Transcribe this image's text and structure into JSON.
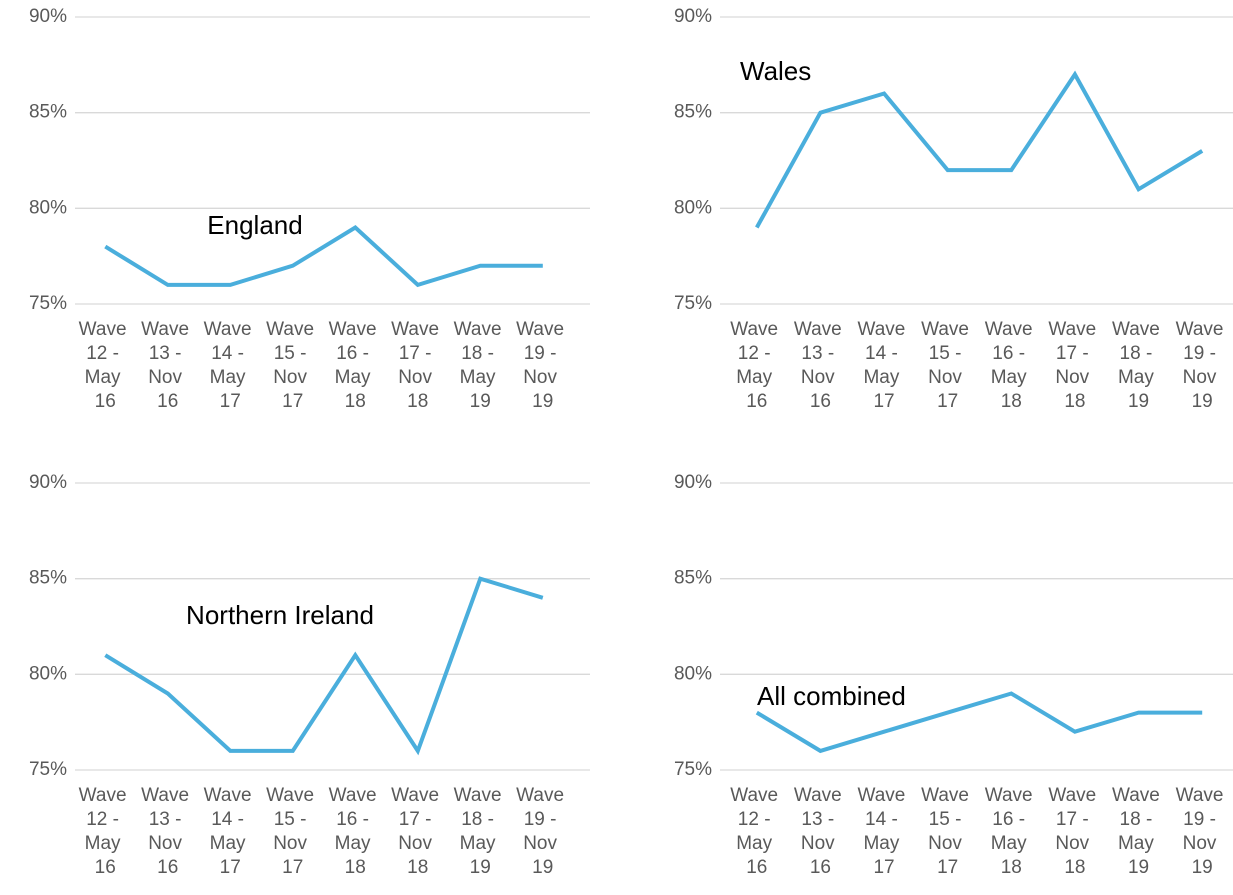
{
  "chart_data": [
    {
      "type": "line",
      "title": "England",
      "categories": [
        "Wave 12 - May 16",
        "Wave 13 - Nov 16",
        "Wave 14 - May 17",
        "Wave 15 - Nov 17",
        "Wave 16 - May 18",
        "Wave 17 - Nov 18",
        "Wave 18 - May 19",
        "Wave 19 - Nov 19"
      ],
      "values": [
        78,
        76,
        76,
        77,
        79,
        76,
        77,
        77
      ],
      "color": "#4aaedc",
      "ylim": [
        75,
        90
      ],
      "yticks": [
        {
          "value": 75,
          "label": "75%"
        },
        {
          "value": 80,
          "label": "80%"
        },
        {
          "value": 85,
          "label": "85%"
        },
        {
          "value": 90,
          "label": "90%"
        }
      ],
      "grid": true
    },
    {
      "type": "line",
      "title": "Wales",
      "categories": [
        "Wave 12 - May 16",
        "Wave 13 - Nov 16",
        "Wave 14 - May 17",
        "Wave 15 - Nov 17",
        "Wave 16 - May 18",
        "Wave 17 - Nov 18",
        "Wave 18 - May 19",
        "Wave 19 - Nov 19"
      ],
      "values": [
        79,
        85,
        86,
        82,
        82,
        87,
        81,
        83
      ],
      "color": "#4aaedc",
      "ylim": [
        75,
        90
      ],
      "yticks": [
        {
          "value": 75,
          "label": "75%"
        },
        {
          "value": 80,
          "label": "80%"
        },
        {
          "value": 85,
          "label": "85%"
        },
        {
          "value": 90,
          "label": "90%"
        }
      ],
      "grid": true
    },
    {
      "type": "line",
      "title": "Northern Ireland",
      "categories": [
        "Wave 12 - May 16",
        "Wave 13 - Nov 16",
        "Wave 14 - May 17",
        "Wave 15 - Nov 17",
        "Wave 16 - May 18",
        "Wave 17 - Nov 18",
        "Wave 18 - May 19",
        "Wave 19 - Nov 19"
      ],
      "values": [
        81,
        79,
        76,
        76,
        81,
        76,
        85,
        84
      ],
      "color": "#4aaedc",
      "ylim": [
        75,
        90
      ],
      "yticks": [
        {
          "value": 75,
          "label": "75%"
        },
        {
          "value": 80,
          "label": "80%"
        },
        {
          "value": 85,
          "label": "85%"
        },
        {
          "value": 90,
          "label": "90%"
        }
      ],
      "grid": true
    },
    {
      "type": "line",
      "title": "All combined",
      "categories": [
        "Wave 12 - May 16",
        "Wave 13 - Nov 16",
        "Wave 14 - May 17",
        "Wave 15 - Nov 17",
        "Wave 16 - May 18",
        "Wave 17 - Nov 18",
        "Wave 18 - May 19",
        "Wave 19 - Nov 19"
      ],
      "values": [
        78,
        76,
        77,
        78,
        79,
        77,
        78,
        78
      ],
      "color": "#4aaedc",
      "ylim": [
        75,
        90
      ],
      "yticks": [
        {
          "value": 75,
          "label": "75%"
        },
        {
          "value": 80,
          "label": "80%"
        },
        {
          "value": 85,
          "label": "85%"
        },
        {
          "value": 90,
          "label": "90%"
        }
      ],
      "grid": true
    }
  ]
}
